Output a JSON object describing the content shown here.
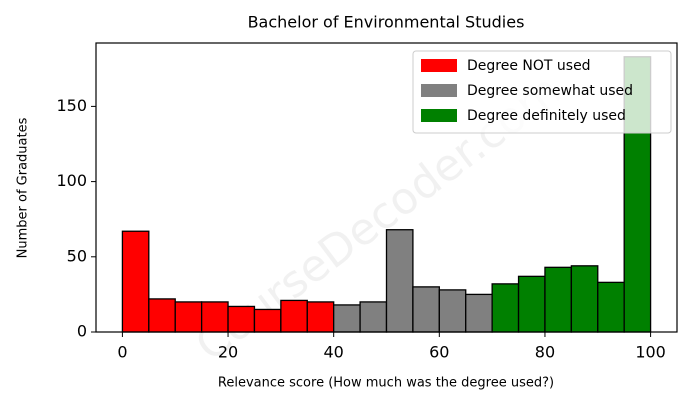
{
  "chart_data": {
    "type": "histogram",
    "title": "Bachelor of Environmental Studies",
    "xlabel": "Relevance score (How much was the degree used?)",
    "ylabel": "Number of Graduates",
    "watermark": "CourseDecoder.com",
    "series": [
      {
        "name": "Degree NOT used",
        "color": "#ff0000",
        "bins": [
          0,
          5,
          10,
          15,
          20,
          25,
          30,
          35,
          40
        ],
        "counts": [
          67,
          22,
          20,
          20,
          17,
          15,
          21,
          20
        ]
      },
      {
        "name": "Degree somewhat used",
        "color": "#808080",
        "bins": [
          40,
          45,
          50,
          55,
          60,
          65,
          70
        ],
        "counts": [
          18,
          20,
          68,
          30,
          28,
          25
        ]
      },
      {
        "name": "Degree definitely used",
        "color": "#008000",
        "bins": [
          70,
          75,
          80,
          85,
          90,
          95,
          100
        ],
        "counts": [
          32,
          37,
          43,
          44,
          33,
          183
        ]
      }
    ],
    "xlim": [
      -5,
      105
    ],
    "ylim": [
      0,
      192.15
    ],
    "xticks": [
      0,
      20,
      40,
      60,
      80,
      100
    ],
    "yticks": [
      0,
      50,
      100,
      150
    ],
    "legend": "upper right"
  }
}
